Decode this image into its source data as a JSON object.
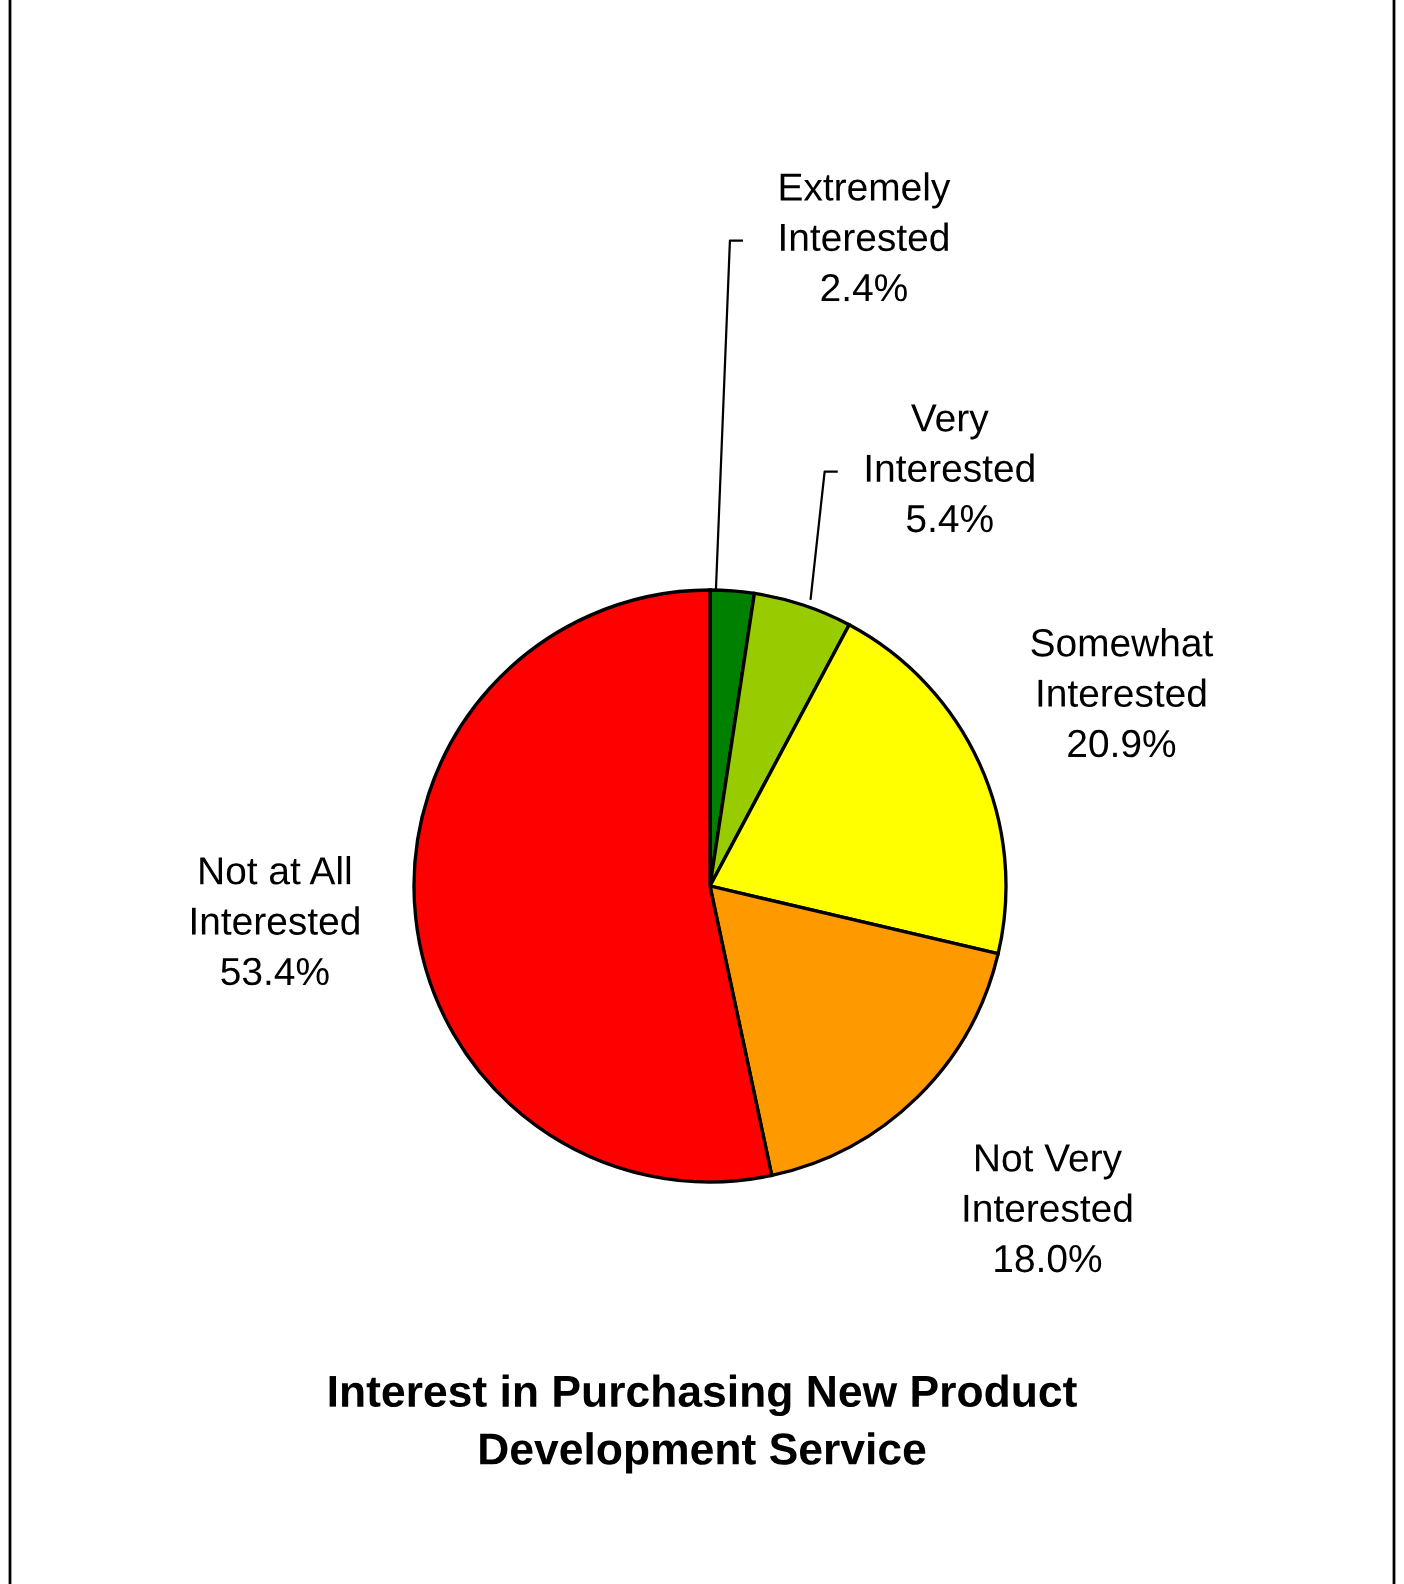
{
  "chart_data": {
    "type": "pie",
    "title": "Interest in Purchasing New Product\nDevelopment Service",
    "categories": [
      "Extremely Interested",
      "Very Interested",
      "Somewhat Interested",
      "Not Very Interested",
      "Not at All Interested"
    ],
    "values": [
      2.4,
      5.4,
      20.9,
      18.0,
      53.4
    ],
    "value_labels": [
      "2.4%",
      "5.4%",
      "20.9%",
      "18.0%",
      "53.4%"
    ],
    "colors": [
      "#008000",
      "#99cc00",
      "#ffff00",
      "#ff9900",
      "#ff0000"
    ]
  }
}
